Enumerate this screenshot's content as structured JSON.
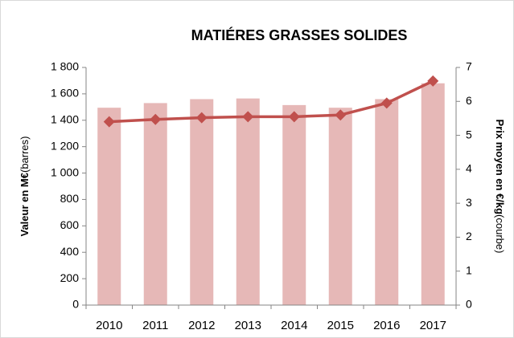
{
  "chart_data": {
    "type": "combo",
    "title": "MATIÉRES GRASSES SOLIDES",
    "y_label": "Valeur en M€",
    "y_label_note": "(barres)",
    "y2_label": "Prix moyen en €/kg",
    "y2_label_note": "(courbe)",
    "categories": [
      "2010",
      "2011",
      "2012",
      "2013",
      "2014",
      "2015",
      "2016",
      "2017"
    ],
    "series": [
      {
        "type": "bar",
        "color": "#e6b8b7",
        "values": [
          1495,
          1530,
          1560,
          1565,
          1515,
          1495,
          1560,
          1680
        ]
      },
      {
        "type": "line",
        "axis": "y2",
        "color": "#c0504d",
        "values": [
          5.4,
          5.47,
          5.52,
          5.55,
          5.55,
          5.6,
          5.95,
          6.6
        ]
      }
    ],
    "ylim": [
      0,
      1800
    ],
    "yticks": [
      0,
      200,
      400,
      600,
      800,
      {
        "value": 1000,
        "label": "1 000"
      },
      {
        "value": 1200,
        "label": "1 200"
      },
      {
        "value": 1400,
        "label": "1 400"
      },
      {
        "value": 1600,
        "label": "1 600"
      },
      {
        "value": 1800,
        "label": "1 800"
      }
    ],
    "y2lim": [
      0,
      7
    ],
    "y2ticks": [
      0,
      1,
      2,
      3,
      4,
      5,
      6,
      7
    ]
  }
}
